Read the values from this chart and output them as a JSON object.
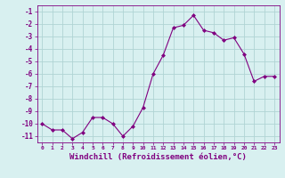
{
  "x": [
    0,
    1,
    2,
    3,
    4,
    5,
    6,
    7,
    8,
    9,
    10,
    11,
    12,
    13,
    14,
    15,
    16,
    17,
    18,
    19,
    20,
    21,
    22,
    23
  ],
  "y": [
    -10.0,
    -10.5,
    -10.5,
    -11.2,
    -10.7,
    -9.5,
    -9.5,
    -10.0,
    -11.0,
    -10.2,
    -8.7,
    -6.0,
    -4.5,
    -2.3,
    -2.1,
    -1.3,
    -2.5,
    -2.7,
    -3.3,
    -3.1,
    -4.4,
    -6.6,
    -6.2,
    -6.2
  ],
  "line_color": "#800080",
  "marker": "D",
  "marker_size": 2.0,
  "bg_color": "#d8f0f0",
  "grid_color": "#b0d4d4",
  "xlabel": "Windchill (Refroidissement éolien,°C)",
  "xlabel_fontsize": 6.5,
  "xlabel_color": "#800080",
  "tick_label_color": "#800080",
  "ylim": [
    -11.5,
    -0.5
  ],
  "xlim": [
    -0.5,
    23.5
  ],
  "yticks": [
    -11,
    -10,
    -9,
    -8,
    -7,
    -6,
    -5,
    -4,
    -3,
    -2,
    -1
  ],
  "ytick_labels": [
    "-11",
    "-10",
    "-9",
    "-8",
    "-7",
    "-6",
    "-5",
    "-4",
    "-3",
    "-2",
    "-1"
  ],
  "xticks": [
    0,
    1,
    2,
    3,
    4,
    5,
    6,
    7,
    8,
    9,
    10,
    11,
    12,
    13,
    14,
    15,
    16,
    17,
    18,
    19,
    20,
    21,
    22,
    23
  ],
  "xtick_labels": [
    "0",
    "1",
    "2",
    "3",
    "4",
    "5",
    "6",
    "7",
    "8",
    "9",
    "10",
    "11",
    "12",
    "13",
    "14",
    "15",
    "16",
    "17",
    "18",
    "19",
    "20",
    "21",
    "22",
    "23"
  ]
}
